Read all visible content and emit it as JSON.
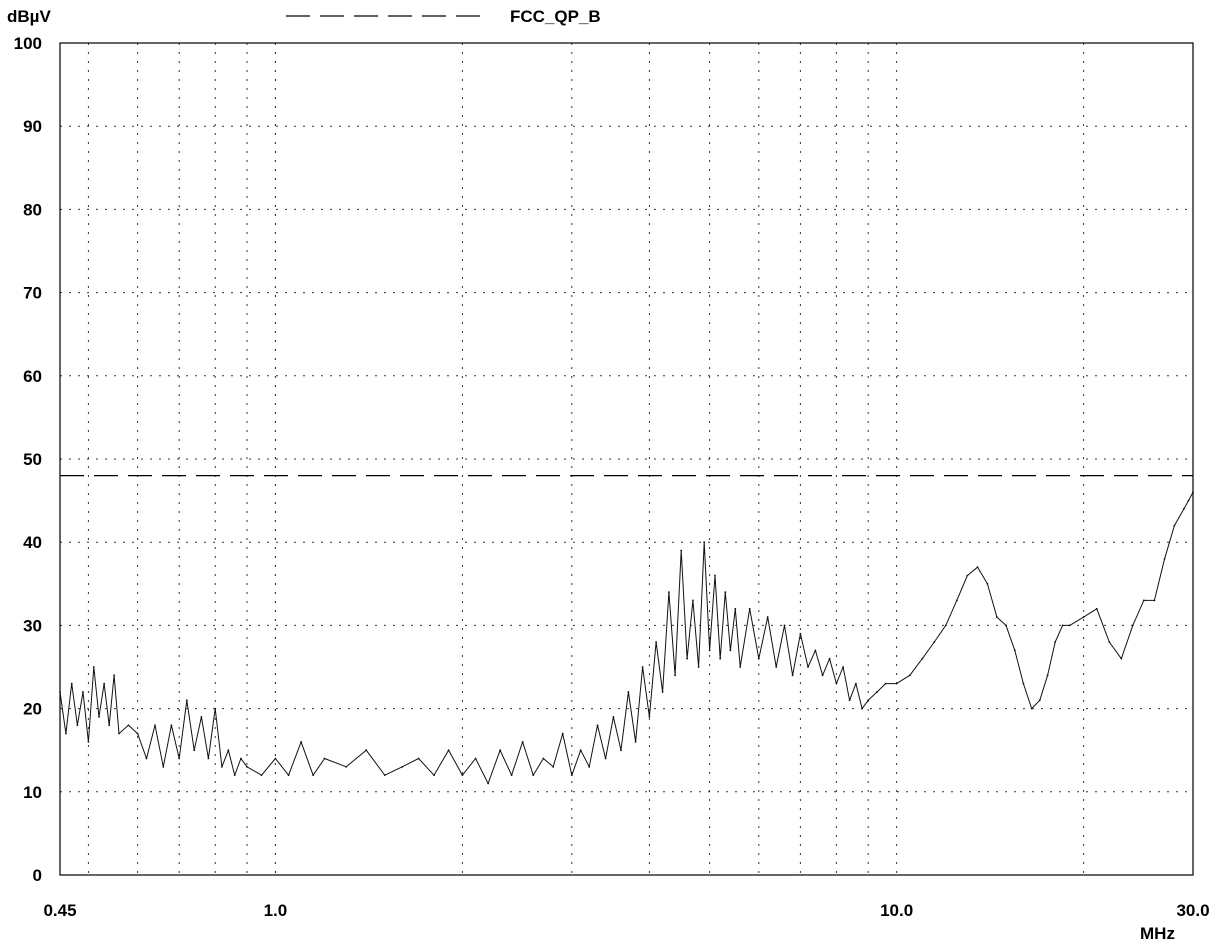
{
  "chart_data": {
    "type": "line",
    "title": "",
    "xlabel": "MHz",
    "ylabel": "dBµV",
    "xscale": "log",
    "xlim": [
      0.45,
      30.0
    ],
    "ylim": [
      0,
      100
    ],
    "x_tick_labels": [
      "0.45",
      "1.0",
      "10.0",
      "30.0"
    ],
    "x_ticks": [
      0.45,
      1.0,
      10.0,
      30.0
    ],
    "y_ticks": [
      0,
      10,
      20,
      30,
      40,
      50,
      60,
      70,
      80,
      90,
      100
    ],
    "grid": true,
    "legend_position": "top",
    "limit_line": {
      "name": "FCC_QP_B",
      "x": [
        0.45,
        30.0
      ],
      "values": [
        48,
        48
      ],
      "style": "dashed"
    },
    "series": [
      {
        "style": "solid",
        "x": [
          0.45,
          0.46,
          0.47,
          0.48,
          0.49,
          0.5,
          0.51,
          0.52,
          0.53,
          0.54,
          0.55,
          0.56,
          0.58,
          0.6,
          0.62,
          0.64,
          0.66,
          0.68,
          0.7,
          0.72,
          0.74,
          0.76,
          0.78,
          0.8,
          0.82,
          0.84,
          0.86,
          0.88,
          0.9,
          0.95,
          1.0,
          1.05,
          1.1,
          1.15,
          1.2,
          1.3,
          1.4,
          1.5,
          1.6,
          1.7,
          1.8,
          1.9,
          2.0,
          2.1,
          2.2,
          2.3,
          2.4,
          2.5,
          2.6,
          2.7,
          2.8,
          2.9,
          3.0,
          3.1,
          3.2,
          3.3,
          3.4,
          3.5,
          3.6,
          3.7,
          3.8,
          3.9,
          4.0,
          4.1,
          4.2,
          4.3,
          4.4,
          4.5,
          4.6,
          4.7,
          4.8,
          4.9,
          5.0,
          5.1,
          5.2,
          5.3,
          5.4,
          5.5,
          5.6,
          5.8,
          6.0,
          6.2,
          6.4,
          6.6,
          6.8,
          7.0,
          7.2,
          7.4,
          7.6,
          7.8,
          8.0,
          8.2,
          8.4,
          8.6,
          8.8,
          9.0,
          9.3,
          9.6,
          10.0,
          10.5,
          11.0,
          11.5,
          12.0,
          12.5,
          13.0,
          13.5,
          14.0,
          14.5,
          15.0,
          15.5,
          16.0,
          16.5,
          17.0,
          17.5,
          18.0,
          18.5,
          19.0,
          20.0,
          21.0,
          22.0,
          23.0,
          24.0,
          25.0,
          26.0,
          27.0,
          28.0,
          29.0,
          29.5,
          30.0
        ],
        "values": [
          22,
          17,
          23,
          18,
          22,
          16,
          25,
          19,
          23,
          18,
          24,
          17,
          18,
          17,
          14,
          18,
          13,
          18,
          14,
          21,
          15,
          19,
          14,
          20,
          13,
          15,
          12,
          14,
          13,
          12,
          14,
          12,
          16,
          12,
          14,
          13,
          15,
          12,
          13,
          14,
          12,
          15,
          12,
          14,
          11,
          15,
          12,
          16,
          12,
          14,
          13,
          17,
          12,
          15,
          13,
          18,
          14,
          19,
          15,
          22,
          16,
          25,
          19,
          28,
          22,
          34,
          24,
          39,
          26,
          33,
          25,
          40,
          27,
          36,
          26,
          34,
          27,
          32,
          25,
          32,
          26,
          31,
          25,
          30,
          24,
          29,
          25,
          27,
          24,
          26,
          23,
          25,
          21,
          23,
          20,
          21,
          22,
          23,
          23,
          24,
          26,
          28,
          30,
          33,
          36,
          37,
          35,
          31,
          30,
          27,
          23,
          20,
          21,
          24,
          28,
          30,
          30,
          31,
          32,
          28,
          26,
          30,
          33,
          33,
          38,
          42,
          44,
          45,
          46
        ]
      }
    ]
  }
}
